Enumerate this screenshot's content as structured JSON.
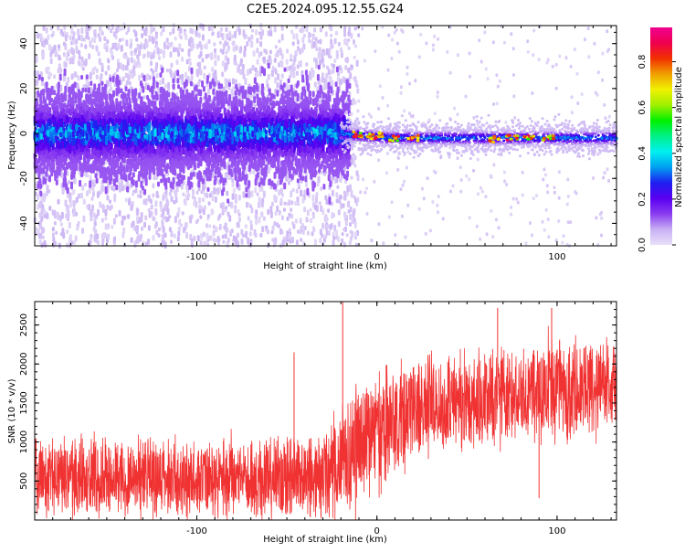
{
  "figure_title": "C2E5.2024.095.12.55.G24",
  "chart_data": [
    {
      "type": "heatmap",
      "title": "C2E5.2024.095.12.55.G24",
      "xlabel": "Height of straight line (km)",
      "ylabel": "Frequency (Hz)",
      "xlim": [
        -190,
        133
      ],
      "ylim": [
        -50,
        48
      ],
      "x_ticks": [
        -100,
        0,
        100
      ],
      "x_tick_labels": [
        "-100",
        "0",
        "100"
      ],
      "y_ticks": [
        -40,
        -20,
        0,
        20,
        40
      ],
      "y_tick_labels": [
        "-40",
        "-20",
        "0",
        "20",
        "40"
      ],
      "colorbar": {
        "label": "Normalized spectral amplitude",
        "range": [
          0,
          0.95
        ],
        "ticks": [
          0.0,
          0.2,
          0.4,
          0.6,
          0.8
        ],
        "tick_labels": [
          "0.0",
          "0.2",
          "0.4",
          "0.6",
          "0.8"
        ],
        "colormap": [
          "#e8e0f8",
          "#c8b0f4",
          "#8a3cf0",
          "#5a00f0",
          "#1e1ef0",
          "#00a0f0",
          "#00f0f0",
          "#00f088",
          "#00f000",
          "#a0f000",
          "#f0f000",
          "#f0a000",
          "#f03000",
          "#f0004e",
          "#f00090"
        ]
      },
      "description_values": {
        "band_center_hz_left": 0,
        "band_halfwidth_hz_left": 18,
        "band_center_hz_right": -2,
        "band_halfwidth_hz_right": 2,
        "transition_height_km": -20,
        "hotspots_km": [
          -10,
          -3,
          0,
          10,
          20,
          65,
          75,
          85,
          95
        ]
      }
    },
    {
      "type": "line",
      "xlabel": "Height of straight line (km)",
      "ylabel": "SNR (10 * v/v)",
      "xlim": [
        -190,
        133
      ],
      "ylim": [
        0,
        2800
      ],
      "x_ticks": [
        -100,
        0,
        100
      ],
      "x_tick_labels": [
        "-100",
        "0",
        "100"
      ],
      "y_ticks": [
        500,
        1000,
        1500,
        2000,
        2500
      ],
      "y_tick_labels": [
        "500",
        "1000",
        "1500",
        "2000",
        "2500"
      ],
      "series": [
        {
          "name": "SNR",
          "color": "#f03232",
          "x_km": [
            -190,
            -160,
            -130,
            -100,
            -70,
            -40,
            -25,
            -18,
            -12,
            -5,
            0,
            10,
            20,
            40,
            60,
            80,
            100,
            120,
            133
          ],
          "mean": [
            550,
            560,
            540,
            530,
            540,
            560,
            620,
            780,
            950,
            1050,
            1120,
            1250,
            1400,
            1500,
            1580,
            1640,
            1700,
            1720,
            1720
          ],
          "spread": [
            420,
            420,
            420,
            400,
            420,
            450,
            520,
            600,
            650,
            650,
            620,
            600,
            560,
            520,
            520,
            520,
            520,
            500,
            500
          ],
          "spikes": [
            {
              "x": -19,
              "y": 2800
            },
            {
              "x": 90,
              "y": 280
            },
            {
              "x": 97,
              "y": 2720
            },
            {
              "x": 67,
              "y": 2720
            },
            {
              "x": -46,
              "y": 2150
            }
          ]
        }
      ]
    }
  ]
}
